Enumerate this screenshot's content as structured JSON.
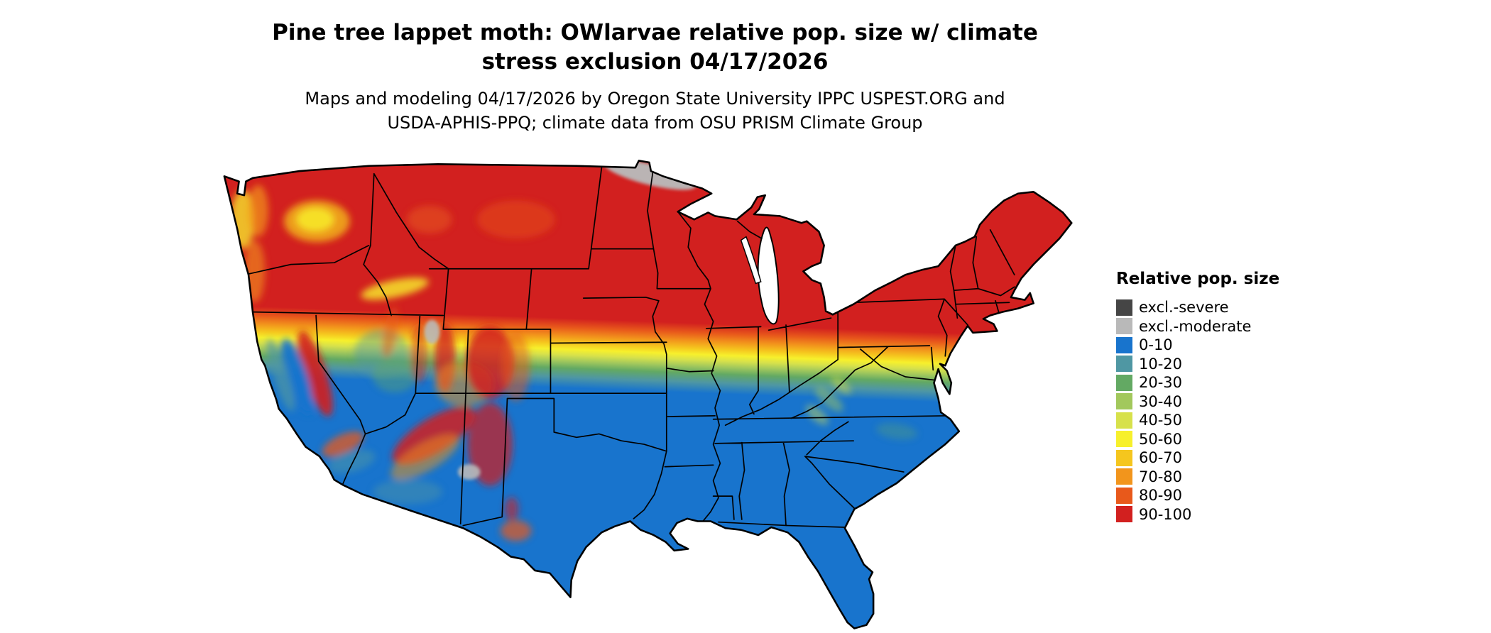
{
  "title": {
    "line1": "Pine tree lappet moth: OWlarvae relative pop. size w/ climate",
    "line2": "stress exclusion 04/17/2026"
  },
  "subtitle": {
    "line1": "Maps and modeling 04/17/2026 by Oregon State University IPPC USPEST.ORG and",
    "line2": "USDA-APHIS-PPQ; climate data from OSU PRISM Climate Group"
  },
  "legend": {
    "title": "Relative pop. size",
    "items": [
      {
        "label": "excl.-severe",
        "color": "#454545"
      },
      {
        "label": "excl.-moderate",
        "color": "#b9b9b9"
      },
      {
        "label": "0-10",
        "color": "#1874cd"
      },
      {
        "label": "10-20",
        "color": "#4f97a3"
      },
      {
        "label": "20-30",
        "color": "#63a963"
      },
      {
        "label": "30-40",
        "color": "#a2c85c"
      },
      {
        "label": "40-50",
        "color": "#d7e14b"
      },
      {
        "label": "50-60",
        "color": "#f7f02c"
      },
      {
        "label": "60-70",
        "color": "#f5c61e"
      },
      {
        "label": "70-80",
        "color": "#f2951c"
      },
      {
        "label": "80-90",
        "color": "#e8591b"
      },
      {
        "label": "90-100",
        "color": "#d2201f"
      }
    ]
  },
  "map": {
    "region_label": "Continental United States (lower 48 states)",
    "band_order_north_to_south": [
      "90-100",
      "80-90",
      "70-80",
      "60-70",
      "50-60",
      "40-50",
      "30-40",
      "20-30",
      "10-20",
      "0-10"
    ],
    "exclusion_areas": [
      "excl.-moderate band along the northern Minnesota / North Dakota border",
      "excl.-moderate patch near the Great Salt Lake",
      "excl.-moderate patch near the southern Arizona / New Mexico border"
    ]
  }
}
